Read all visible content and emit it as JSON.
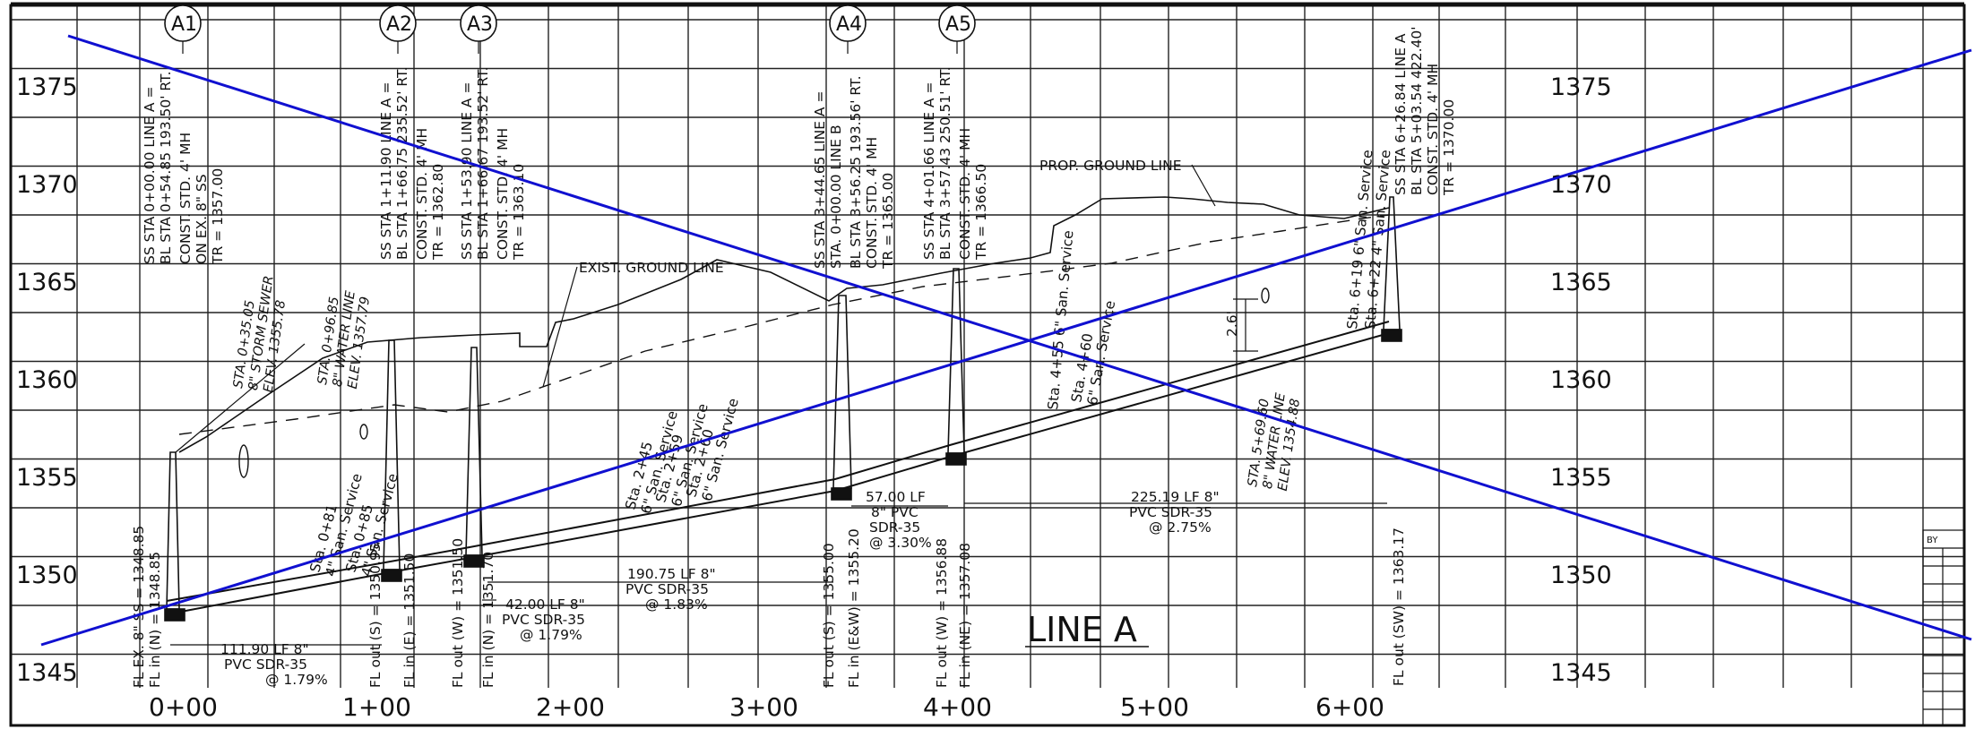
{
  "profile": {
    "elevation_labels": [
      "1375",
      "1370",
      "1365",
      "1360",
      "1355",
      "1350",
      "1345"
    ],
    "station_labels": [
      "0+00",
      "1+00",
      "2+00",
      "3+00",
      "4+00",
      "5+00",
      "6+00"
    ],
    "manhole_tags": [
      "A1",
      "A2",
      "A3",
      "A4",
      "A5"
    ],
    "line_label": "LINE A",
    "exist_ground_label": "EXIST. GROUND LINE",
    "prop_ground_label": "PROP. GROUND LINE",
    "manhole_notes": [
      [
        "SS STA 0+00.00 LINE A =",
        "BL STA 0+54.85 193.50' RT.",
        "CONST. STD. 4' MH",
        "ON EX. 8\" SS",
        "TR = 1357.00"
      ],
      [
        "SS STA 1+11.90 LINE A =",
        "BL STA 1+66.75 235.52' RT.",
        "CONST. STD. 4' MH",
        "TR = 1362.80"
      ],
      [
        "SS STA 1+53.90 LINE A =",
        "BL STA 1+66.67 193.52' RT.",
        "CONST. STD. 4' MH",
        "TR = 1363.10"
      ],
      [
        "SS STA 3+44.65 LINE A =",
        "STA. 0+00.00 LINE B",
        "BL STA 3+56.25 193.56' RT.",
        "CONST. STD. 4' MH",
        "TR = 1365.00"
      ],
      [
        "SS STA 4+01.66 LINE A =",
        "BL STA 3+57.43 250.51' RT.",
        "CONST. STD. 4' MH",
        "TR = 1366.50"
      ],
      [
        "SS STA 6+26.84 LINE A",
        "BL STA 5+03.54 422.40'",
        "CONST. STD. 4' MH",
        "TR = 1370.00"
      ]
    ],
    "flowline_notes": [
      [
        "FL EX. 8\" SS = 1348.85",
        "FL in (N) = 1348.85"
      ],
      [
        "FL out (S) = 1350.95"
      ],
      [
        "FL in (E) = 1351.50"
      ],
      [
        "FL out (W) = 1351.50"
      ],
      [
        "FL in (N) = 1351.70"
      ],
      [
        "FL out (S) = 1355.00"
      ],
      [
        "FL in (E&W) = 1355.20"
      ],
      [
        "FL out (W) = 1356.88"
      ],
      [
        "FL in (NE) = 1357.08"
      ],
      [
        "FL out (SW) = 1363.17"
      ]
    ],
    "pipe_notes": [
      [
        "111.90 LF 8\"",
        "PVC SDR-35",
        "@ 1.79%"
      ],
      [
        "42.00 LF 8\"",
        "PVC SDR-35",
        "@ 1.79%"
      ],
      [
        "190.75 LF 8\"",
        "PVC SDR-35",
        "@ 1.83%"
      ],
      [
        "57.00 LF",
        "8\" PVC",
        "SDR-35",
        "@ 3.30%"
      ],
      [
        "225.19 LF 8\"",
        "PVC SDR-35",
        "@ 2.75%"
      ]
    ],
    "service_notes": [
      [
        "Sta. 0+81",
        "4\" San. Service"
      ],
      [
        "Sta. 0+85",
        "4\" San. Service"
      ],
      [
        "Sta. 2+45",
        "6\" San. Service"
      ],
      [
        "Sta. 2+59",
        "6\" San. Service"
      ],
      [
        "Sta. 2+60",
        "6\" San. Service"
      ],
      [
        "Sta. 4+55 6\" San. Service"
      ],
      [
        "Sta. 4+60",
        "6\" San. Service"
      ],
      [
        "Sta. 6+19 6\" San. Service"
      ],
      [
        "Sta. 6+22 4\" San. Service"
      ]
    ],
    "crossing_notes": [
      [
        "STA. 0+35.05",
        "8\" STORM SEWER",
        "ELEV. 1355.78"
      ],
      [
        "STA. 0+96.85",
        "8\" WATER LINE",
        "ELEV. 1357.79"
      ],
      [
        "STA. 5+69.60",
        "8\" WATER LINE",
        "ELEV. 1354.88"
      ]
    ],
    "dimension_label": "2.6'",
    "titleblock_label": "BY"
  },
  "colors": {
    "ink": "#111111",
    "annotation_lines": "#1010d0"
  }
}
